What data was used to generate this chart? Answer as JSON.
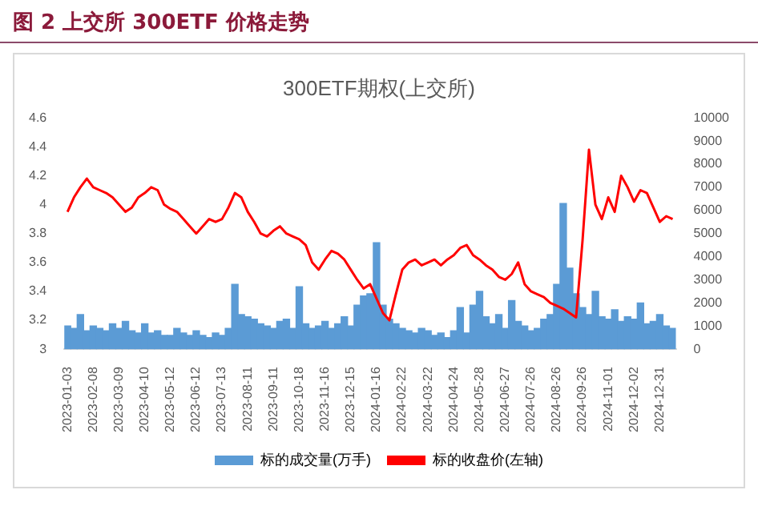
{
  "chart_data": {
    "type": "line",
    "title": "图 2 上交所 300ETF 价格走势",
    "subtitle": "300ETF期权(上交所)",
    "categories": [
      "2023-01-03",
      null,
      null,
      null,
      "2023-02-08",
      null,
      null,
      null,
      "2023-03-09",
      null,
      null,
      null,
      "2023-04-10",
      null,
      null,
      null,
      "2023-05-12",
      null,
      null,
      null,
      "2023-06-12",
      null,
      null,
      null,
      "2023-07-13",
      null,
      null,
      null,
      "2023-08-11",
      null,
      null,
      null,
      "2023-09-11",
      null,
      null,
      null,
      "2023-10-18",
      null,
      null,
      null,
      "2023-11-16",
      null,
      null,
      null,
      "2023-12-15",
      null,
      null,
      null,
      "2024-01-16",
      null,
      null,
      null,
      "2024-02-22",
      null,
      null,
      null,
      "2024-03-22",
      null,
      null,
      null,
      "2024-04-24",
      null,
      null,
      null,
      "2024-05-28",
      null,
      null,
      null,
      "2024-06-27",
      null,
      null,
      null,
      "2024-07-26",
      null,
      null,
      null,
      "2024-08-26",
      null,
      null,
      null,
      "2024-09-26",
      null,
      null,
      null,
      "2024-11-01",
      null,
      null,
      null,
      "2024-12-02",
      null,
      null,
      null,
      "2024-12-31",
      null,
      null
    ],
    "series": [
      {
        "name": "标的成交量(万手)",
        "type": "bar",
        "axis": "y2",
        "color": "#5b9bd5",
        "values": [
          1000,
          900,
          1500,
          800,
          1000,
          900,
          800,
          1100,
          900,
          1200,
          800,
          700,
          1100,
          700,
          800,
          600,
          600,
          900,
          700,
          600,
          800,
          600,
          500,
          700,
          600,
          900,
          2800,
          1500,
          1400,
          1300,
          1100,
          1000,
          900,
          1200,
          1300,
          900,
          2700,
          1100,
          900,
          1000,
          1200,
          900,
          1100,
          1400,
          1000,
          1900,
          2300,
          2400,
          4600,
          1900,
          1300,
          1100,
          900,
          800,
          700,
          900,
          800,
          600,
          700,
          500,
          800,
          1800,
          700,
          1900,
          2500,
          1400,
          1100,
          1500,
          900,
          2100,
          1200,
          1000,
          800,
          900,
          1300,
          1500,
          2800,
          6300,
          3500,
          2400,
          1800,
          1500,
          2500,
          1400,
          1300,
          1700,
          1200,
          1400,
          1300,
          2000,
          1100,
          1200,
          1500,
          1000,
          900
        ]
      },
      {
        "name": "标的收盘价(左轴)",
        "color": "#ff0000",
        "values": [
          3.95,
          4.05,
          4.12,
          4.18,
          4.12,
          4.1,
          4.08,
          4.05,
          4.0,
          3.95,
          3.98,
          4.05,
          4.08,
          4.12,
          4.1,
          4.0,
          3.97,
          3.95,
          3.9,
          3.85,
          3.8,
          3.85,
          3.9,
          3.88,
          3.9,
          3.98,
          4.08,
          4.05,
          3.95,
          3.88,
          3.8,
          3.78,
          3.82,
          3.85,
          3.8,
          3.78,
          3.76,
          3.72,
          3.6,
          3.55,
          3.62,
          3.68,
          3.66,
          3.62,
          3.55,
          3.48,
          3.42,
          3.45,
          3.35,
          3.25,
          3.2,
          3.38,
          3.55,
          3.6,
          3.62,
          3.58,
          3.6,
          3.62,
          3.58,
          3.62,
          3.65,
          3.7,
          3.72,
          3.65,
          3.62,
          3.58,
          3.55,
          3.5,
          3.48,
          3.52,
          3.6,
          3.45,
          3.4,
          3.38,
          3.36,
          3.32,
          3.3,
          3.28,
          3.25,
          3.22,
          3.75,
          4.38,
          4.0,
          3.9,
          4.05,
          3.95,
          4.2,
          4.12,
          4.02,
          4.1,
          4.08,
          3.98,
          3.88,
          3.92,
          3.9
        ]
      }
    ],
    "ylim": [
      3,
      4.6
    ],
    "yticks": [
      3,
      3.2,
      3.4,
      3.6,
      3.8,
      4,
      4.2,
      4.4,
      4.6
    ],
    "y2lim": [
      0,
      10000
    ],
    "y2ticks": [
      0,
      1000,
      2000,
      3000,
      4000,
      5000,
      6000,
      7000,
      8000,
      9000,
      10000
    ],
    "grid": false,
    "legend": "bottom",
    "marker": "none",
    "line_style": "solid"
  }
}
